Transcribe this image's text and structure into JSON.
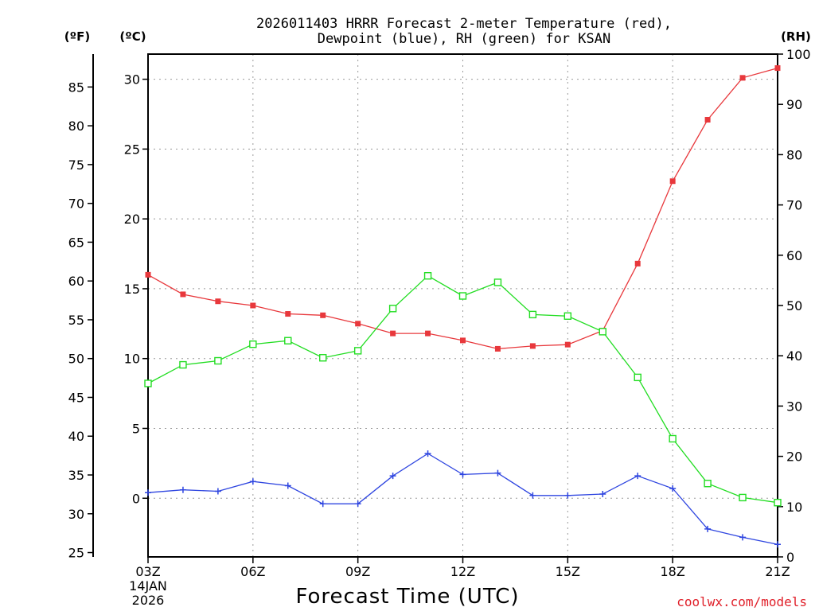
{
  "chart_data": {
    "type": "line",
    "title": [
      "2026011403 HRRR Forecast 2-meter Temperature (red),",
      "Dewpoint (blue), RH (green) for KSAN"
    ],
    "xlabel": "Forecast Time (UTC)",
    "date_label": [
      "14JAN",
      "2026"
    ],
    "unit_labels": {
      "fahrenheit": "(ºF)",
      "celsius": "(ºC)",
      "rh": "(RH)"
    },
    "watermark": "coolwx.com/models",
    "x_hours": [
      3,
      4,
      5,
      6,
      7,
      8,
      9,
      10,
      11,
      12,
      13,
      14,
      15,
      16,
      17,
      18,
      19,
      20,
      21
    ],
    "x_ticks": [
      {
        "hour": 3,
        "label": "03Z"
      },
      {
        "hour": 6,
        "label": "06Z"
      },
      {
        "hour": 9,
        "label": "09Z"
      },
      {
        "hour": 12,
        "label": "12Z"
      },
      {
        "hour": 15,
        "label": "15Z"
      },
      {
        "hour": 18,
        "label": "18Z"
      },
      {
        "hour": 21,
        "label": "21Z"
      }
    ],
    "xlim": [
      3,
      21
    ],
    "celsius_axis": {
      "ylim": [
        -4.2,
        31.8
      ],
      "ticks": [
        0,
        5,
        10,
        15,
        20,
        25,
        30
      ]
    },
    "fahrenheit_axis": {
      "ticks": [
        25,
        30,
        35,
        40,
        45,
        50,
        55,
        60,
        65,
        70,
        75,
        80,
        85
      ]
    },
    "rh_axis": {
      "ylim": [
        0,
        100
      ],
      "ticks": [
        0,
        10,
        20,
        30,
        40,
        50,
        60,
        70,
        80,
        90,
        100
      ]
    },
    "series": [
      {
        "name": "Temperature",
        "axis": "celsius",
        "color": "#e8383c",
        "marker": "filled-square",
        "values": [
          16.0,
          14.6,
          14.1,
          13.8,
          13.2,
          13.1,
          12.5,
          11.8,
          11.8,
          11.3,
          10.7,
          10.9,
          11.0,
          12.0,
          16.8,
          22.7,
          27.1,
          30.1,
          30.8
        ]
      },
      {
        "name": "Dewpoint",
        "axis": "celsius",
        "color": "#2e45e0",
        "marker": "plus",
        "values": [
          0.4,
          0.6,
          0.5,
          1.2,
          0.9,
          -0.4,
          -0.4,
          1.6,
          3.2,
          1.7,
          1.8,
          0.2,
          0.2,
          0.3,
          1.6,
          0.7,
          -2.2,
          -2.8,
          -3.3
        ]
      },
      {
        "name": "RH",
        "axis": "rh",
        "color": "#22dd22",
        "marker": "open-square",
        "values": [
          34.5,
          38.2,
          39.0,
          42.3,
          43.0,
          39.6,
          41.0,
          49.4,
          55.9,
          51.9,
          54.6,
          48.2,
          47.9,
          44.8,
          35.7,
          23.5,
          14.6,
          11.8,
          10.8
        ]
      }
    ]
  }
}
